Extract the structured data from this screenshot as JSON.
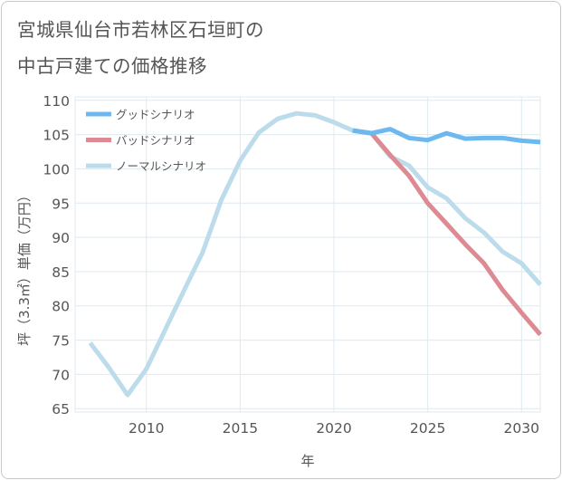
{
  "title_lines": [
    "宮城県仙台市若林区石垣町の",
    "中古戸建ての価格推移"
  ],
  "chart_data": {
    "type": "line",
    "title": "宮城県仙台市若林区石垣町の中古戸建ての価格推移",
    "xlabel": "年",
    "ylabel": "坪（3.3㎡）単価（万円）",
    "xlim": [
      2006.2,
      2031
    ],
    "ylim": [
      64.5,
      110.5
    ],
    "xticks": [
      2010,
      2015,
      2020,
      2025,
      2030
    ],
    "yticks": [
      65,
      70,
      75,
      80,
      85,
      90,
      95,
      100,
      105,
      110
    ],
    "grid": true,
    "legend_position": "top-left",
    "series": [
      {
        "name": "グッドシナリオ",
        "color": "#6db8ee",
        "points": [
          [
            2021,
            105.6
          ],
          [
            2022,
            105.2
          ],
          [
            2023,
            105.8
          ],
          [
            2024,
            104.5
          ],
          [
            2025,
            104.2
          ],
          [
            2026,
            105.2
          ],
          [
            2027,
            104.4
          ],
          [
            2028,
            104.5
          ],
          [
            2029,
            104.5
          ],
          [
            2030,
            104.1
          ],
          [
            2031,
            103.9
          ]
        ]
      },
      {
        "name": "バッドシナリオ",
        "color": "#de8a93",
        "points": [
          [
            2021,
            105.6
          ],
          [
            2022,
            105.2
          ],
          [
            2023,
            102.0
          ],
          [
            2024,
            99.0
          ],
          [
            2025,
            95.0
          ],
          [
            2026,
            92.0
          ],
          [
            2027,
            89.0
          ],
          [
            2028,
            86.2
          ],
          [
            2029,
            82.3
          ],
          [
            2030,
            79.0
          ],
          [
            2031,
            75.8
          ]
        ]
      },
      {
        "name": "ノーマルシナリオ",
        "color": "#bcdcec",
        "points": [
          [
            2007,
            74.6
          ],
          [
            2008,
            71.0
          ],
          [
            2009,
            67.0
          ],
          [
            2010,
            70.8
          ],
          [
            2011,
            76.5
          ],
          [
            2012,
            82.2
          ],
          [
            2013,
            87.8
          ],
          [
            2014,
            95.5
          ],
          [
            2015,
            101.2
          ],
          [
            2016,
            105.3
          ],
          [
            2017,
            107.3
          ],
          [
            2018,
            108.1
          ],
          [
            2019,
            107.8
          ],
          [
            2020,
            106.8
          ],
          [
            2021,
            105.6
          ],
          [
            2022,
            105.2
          ],
          [
            2023,
            101.8
          ],
          [
            2024,
            100.5
          ],
          [
            2025,
            97.3
          ],
          [
            2026,
            95.7
          ],
          [
            2027,
            92.8
          ],
          [
            2028,
            90.7
          ],
          [
            2029,
            87.9
          ],
          [
            2030,
            86.2
          ],
          [
            2031,
            83.1
          ]
        ]
      }
    ]
  }
}
